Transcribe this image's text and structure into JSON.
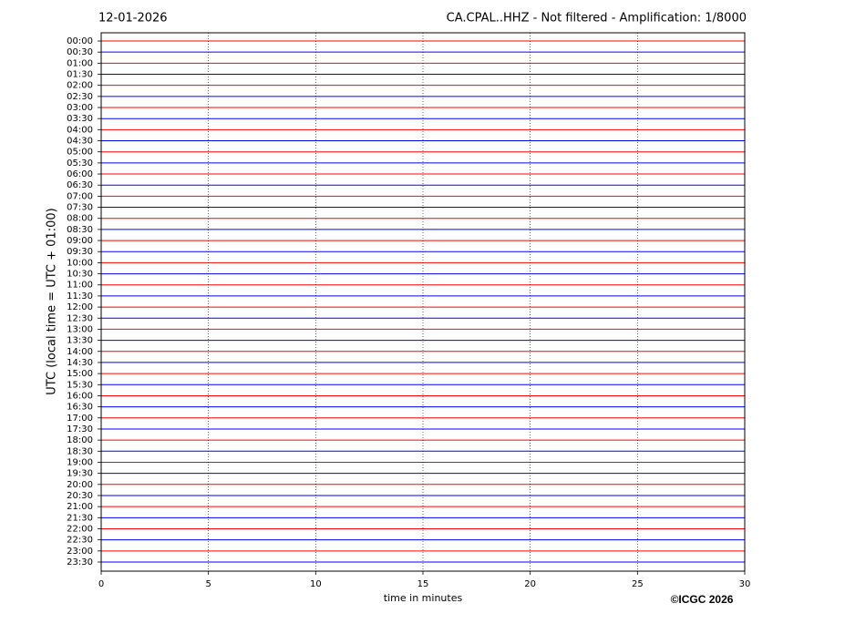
{
  "chart_data": {
    "type": "helicorder",
    "date": "12-01-2026",
    "title": "CA.CPAL..HHZ - Not filtered - Amplification: 1/8000",
    "ylabel": "UTC (local time = UTC + 01:00)",
    "xlabel": "time in minutes",
    "credit": "©ICGC 2026",
    "categories": [
      "00:00",
      "00:30",
      "01:00",
      "01:30",
      "02:00",
      "02:30",
      "03:00",
      "03:30",
      "04:00",
      "04:30",
      "05:00",
      "05:30",
      "06:00",
      "06:30",
      "07:00",
      "07:30",
      "08:00",
      "08:30",
      "09:00",
      "09:30",
      "10:00",
      "10:30",
      "11:00",
      "11:30",
      "12:00",
      "12:30",
      "13:00",
      "13:30",
      "14:00",
      "14:30",
      "15:00",
      "15:30",
      "16:00",
      "16:30",
      "17:00",
      "17:30",
      "18:00",
      "18:30",
      "19:00",
      "19:30",
      "20:00",
      "20:30",
      "21:00",
      "21:30",
      "22:00",
      "22:30",
      "23:00",
      "23:30"
    ],
    "colors": [
      "#ff0000",
      "#0000ff"
    ],
    "xlim": [
      0,
      30
    ],
    "xticks": [
      0,
      5,
      10,
      15,
      20,
      25,
      30
    ],
    "grid": true
  }
}
